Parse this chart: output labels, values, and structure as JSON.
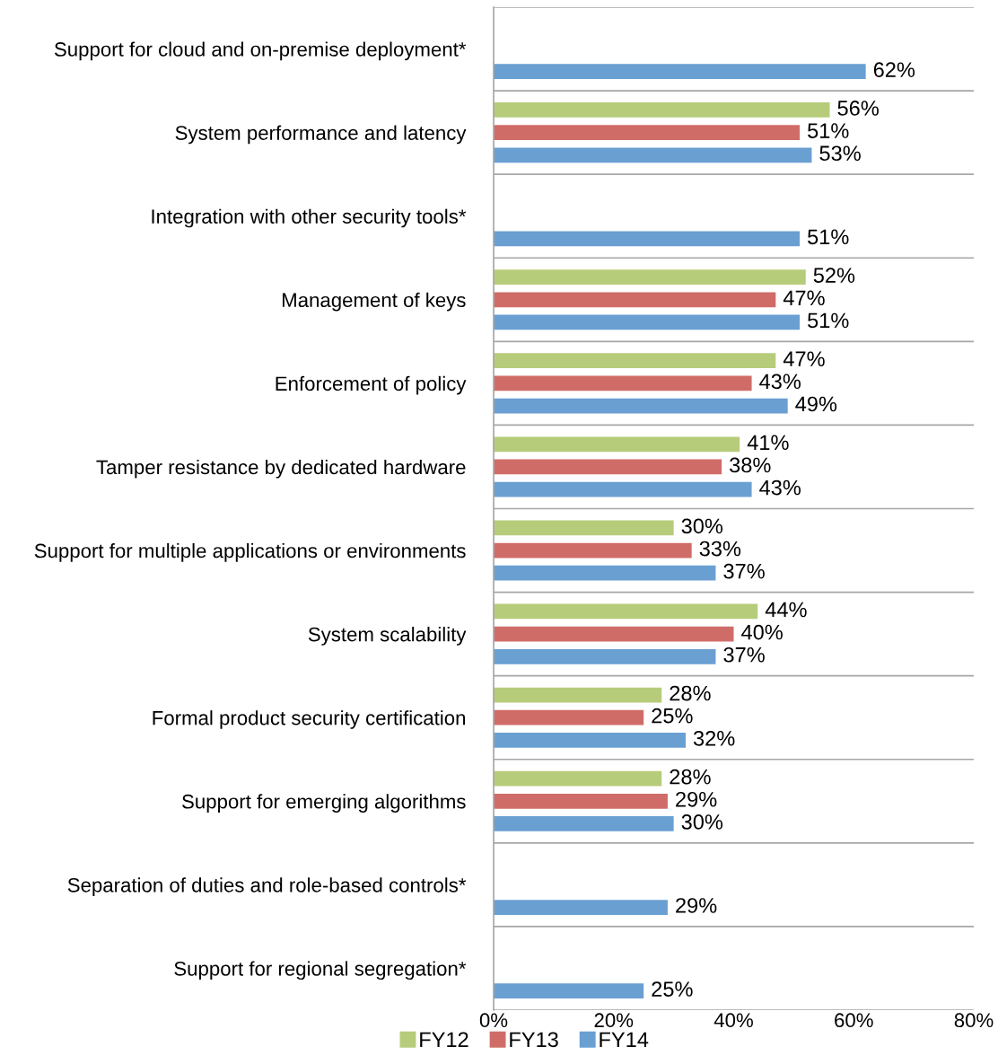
{
  "chart_data": {
    "type": "bar",
    "orientation": "horizontal",
    "categories": [
      "Support for cloud and on-premise deployment*",
      "System performance and latency",
      "Integration with other security tools*",
      "Management of keys",
      "Enforcement of policy",
      "Tamper resistance by dedicated hardware",
      "Support for multiple applications or environments",
      "System scalability",
      "Formal product security certification",
      "Support for emerging algorithms",
      "Separation of duties and role-based controls*",
      "Support for regional segregation*"
    ],
    "series": [
      {
        "name": "FY12",
        "color": "#b7cc7a",
        "values": [
          null,
          56,
          null,
          52,
          47,
          41,
          30,
          44,
          28,
          28,
          null,
          null
        ],
        "value_labels": [
          null,
          "56%",
          null,
          "52%",
          "47%",
          "41%",
          "30%",
          "44%",
          "28%",
          "28%",
          null,
          null
        ]
      },
      {
        "name": "FY13",
        "color": "#d06c68",
        "values": [
          null,
          51,
          null,
          47,
          43,
          38,
          33,
          40,
          25,
          29,
          null,
          null
        ],
        "value_labels": [
          null,
          "51%",
          null,
          "47%",
          "43%",
          "38%",
          "33%",
          "40%",
          "25%",
          "29%",
          null,
          null
        ]
      },
      {
        "name": "FY14",
        "color": "#6a9fd2",
        "values": [
          62,
          53,
          51,
          51,
          49,
          43,
          37,
          37,
          32,
          30,
          29,
          25
        ],
        "value_labels": [
          "62%",
          "53%",
          "51%",
          "51%",
          "49%",
          "43%",
          "37%",
          "37%",
          "32%",
          "30%",
          "29%",
          "25%"
        ]
      }
    ],
    "xlim": [
      0,
      80
    ],
    "xticks": [
      {
        "value": 0,
        "label": "0%"
      },
      {
        "value": 20,
        "label": "20%"
      },
      {
        "value": 40,
        "label": "40%"
      },
      {
        "value": 60,
        "label": "60%"
      },
      {
        "value": 80,
        "label": "80%"
      }
    ],
    "grid": "y",
    "legend": "bottom"
  }
}
